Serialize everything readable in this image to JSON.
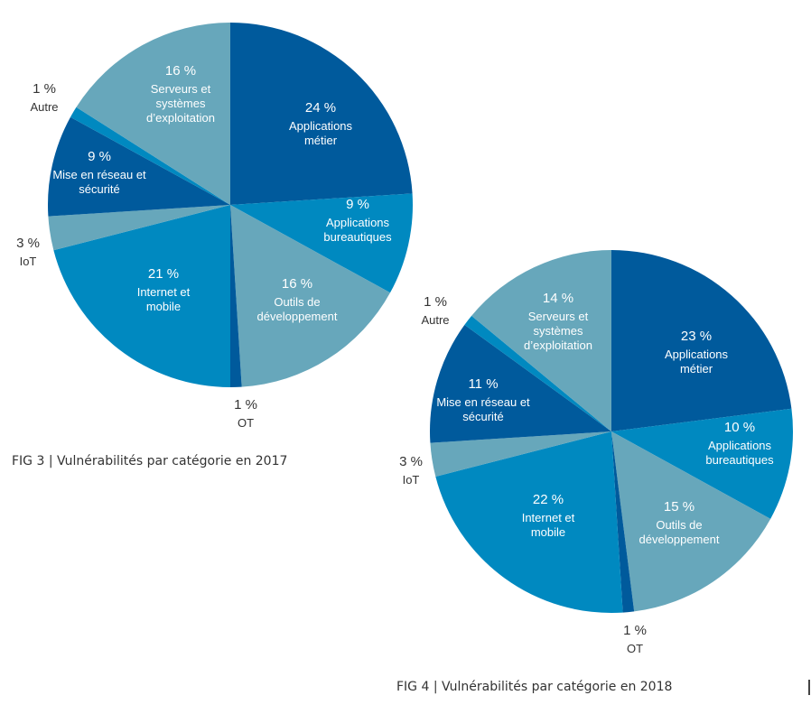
{
  "colors": {
    "dark": "#005a9c",
    "mid": "#0089c0",
    "light": "#67a7bb"
  },
  "chart_data": [
    {
      "type": "pie",
      "title": "FIG 3 | Vulnérabilités par catégorie en 2017",
      "categories": [
        "Applications métier",
        "Applications bureautiques",
        "Outils de développement",
        "OT",
        "Internet et mobile",
        "IoT",
        "Mise en réseau et sécurité",
        "Autre",
        "Serveurs et systèmes d’exploitation"
      ],
      "values": [
        24,
        9,
        16,
        1,
        21,
        3,
        9,
        1,
        16
      ],
      "value_labels": [
        "24 %",
        "9 %",
        "16 %",
        "1 %",
        "21 %",
        "3 %",
        "9 %",
        "1 %",
        "16 %"
      ],
      "label_lines": [
        [
          "Applications",
          "métier"
        ],
        [
          "Applications",
          "bureautiques"
        ],
        [
          "Outils de",
          "développement"
        ],
        [
          "OT"
        ],
        [
          "Internet et",
          "mobile"
        ],
        [
          "IoT"
        ],
        [
          "Mise en réseau et",
          "sécurité"
        ],
        [
          "Autre"
        ],
        [
          "Serveurs et",
          "systèmes",
          "d’exploitation"
        ]
      ],
      "slice_colors": [
        "dark",
        "mid",
        "light",
        "dark",
        "mid",
        "light",
        "dark",
        "mid",
        "light"
      ],
      "start": "top",
      "direction": "clockwise"
    },
    {
      "type": "pie",
      "title": "FIG 4 | Vulnérabilités par catégorie en 2018",
      "categories": [
        "Applications métier",
        "Applications bureautiques",
        "Outils de développement",
        "OT",
        "Internet et mobile",
        "IoT",
        "Mise en réseau et sécurité",
        "Autre",
        "Serveurs et systèmes d’exploitation"
      ],
      "values": [
        23,
        10,
        15,
        1,
        22,
        3,
        11,
        1,
        14
      ],
      "value_labels": [
        "23 %",
        "10 %",
        "15 %",
        "1 %",
        "22 %",
        "3 %",
        "11 %",
        "1 %",
        "14 %"
      ],
      "label_lines": [
        [
          "Applications",
          "métier"
        ],
        [
          "Applications",
          "bureautiques"
        ],
        [
          "Outils de",
          "développement"
        ],
        [
          "OT"
        ],
        [
          "Internet et",
          "mobile"
        ],
        [
          "IoT"
        ],
        [
          "Mise en réseau et",
          "sécurité"
        ],
        [
          "Autre"
        ],
        [
          "Serveurs et",
          "systèmes",
          "d’exploitation"
        ]
      ],
      "slice_colors": [
        "dark",
        "mid",
        "light",
        "dark",
        "mid",
        "light",
        "dark",
        "mid",
        "light"
      ],
      "start": "top",
      "direction": "clockwise"
    }
  ]
}
